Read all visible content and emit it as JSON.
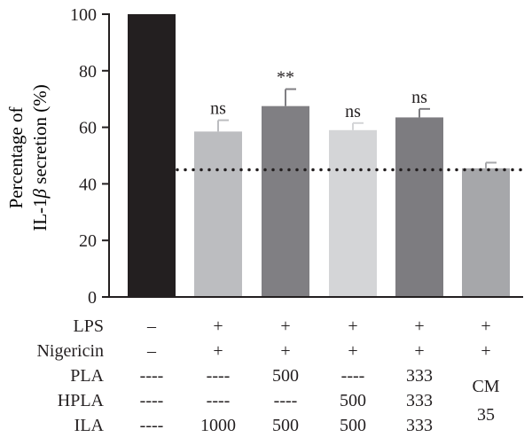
{
  "chart_data": {
    "type": "bar",
    "title": "",
    "xlabel": "",
    "ylabel_line1": "Percentage of",
    "ylabel_line2_prefix": "IL-1",
    "ylabel_line2_greek": "β",
    "ylabel_line2_suffix": " secretion (%)",
    "ylim": [
      0,
      100
    ],
    "yticks": [
      "0",
      "20",
      "40",
      "60",
      "80",
      "100"
    ],
    "grid": false,
    "reference_line": {
      "value": 45,
      "style": "dotted"
    },
    "values": [
      100,
      58.5,
      67.5,
      59,
      63.5,
      45.5
    ],
    "errors": [
      0,
      4,
      6,
      2.5,
      3,
      2
    ],
    "colors": [
      "#231f20",
      "#bcbdc0",
      "#807f83",
      "#d4d5d7",
      "#7d7c80",
      "#a6a7aa"
    ],
    "significance": [
      "",
      "ns",
      "**",
      "ns",
      "ns",
      ""
    ],
    "conditions": [
      {
        "label": "LPS",
        "values": [
          "–",
          "+",
          "+",
          "+",
          "+",
          "+"
        ]
      },
      {
        "label": "Nigericin",
        "values": [
          "–",
          "+",
          "+",
          "+",
          "+",
          "+"
        ]
      },
      {
        "label": "PLA",
        "values": [
          "----",
          "----",
          "500",
          "----",
          "333",
          ""
        ]
      },
      {
        "label": "HPLA",
        "values": [
          "----",
          "----",
          "----",
          "500",
          "333",
          ""
        ]
      },
      {
        "label": "ILA",
        "values": [
          "----",
          "1000",
          "500",
          "500",
          "333",
          ""
        ]
      }
    ],
    "extra_label": {
      "line1": "CM",
      "line2": "35"
    }
  }
}
